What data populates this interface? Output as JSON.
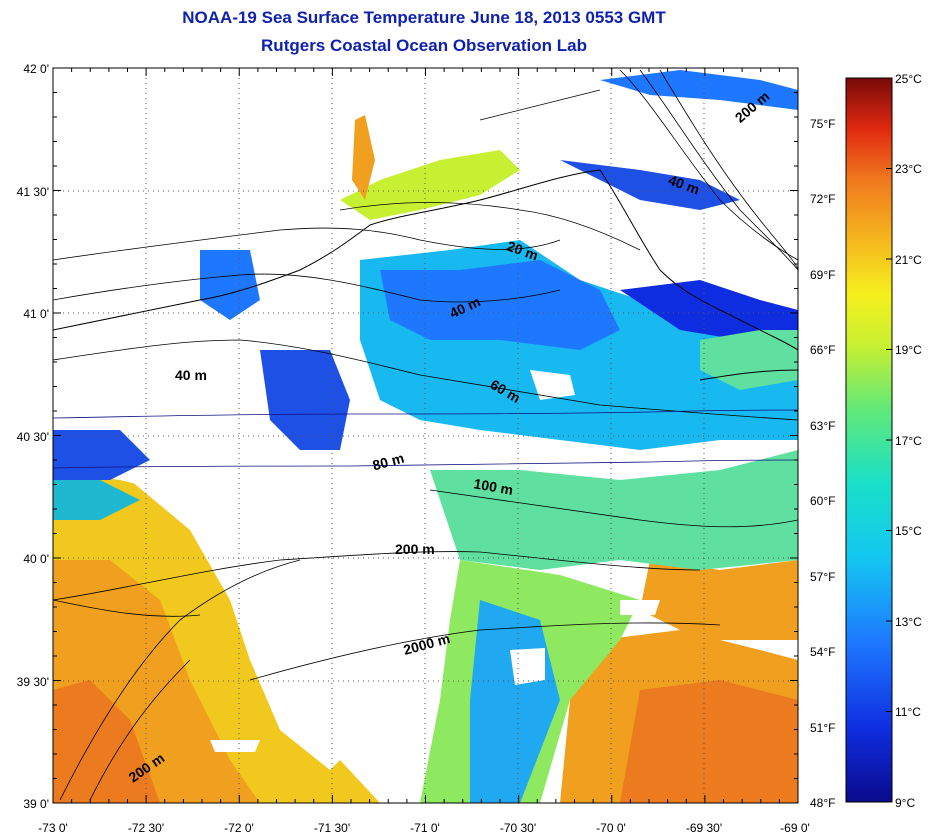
{
  "title": {
    "line1": "NOAA-19 Sea Surface Temperature June 18, 2013 0553 GMT",
    "line2": "Rutgers Coastal Ocean Observation Lab"
  },
  "map": {
    "lon_range": [
      -73,
      -69
    ],
    "lat_range": [
      39,
      42
    ],
    "lon_ticks": [
      "-73 0'",
      "-72 30'",
      "-72 0'",
      "-71 30'",
      "-71 0'",
      "-70 30'",
      "-70 0'",
      "-69 30'",
      "-69 0'"
    ],
    "lat_ticks": [
      "42 0'",
      "41 30'",
      "41 0'",
      "40 30'",
      "40 0'",
      "39 30'",
      "39 0'"
    ],
    "f_ticks": [
      "75°F",
      "72°F",
      "69°F",
      "66°F",
      "63°F",
      "60°F",
      "57°F",
      "54°F",
      "51°F",
      "48°F"
    ],
    "contour_labels": [
      "200 m",
      "40 m",
      "20 m",
      "40 m",
      "40 m",
      "60 m",
      "80 m",
      "100 m",
      "200 m",
      "2000 m",
      "200 m"
    ]
  },
  "colorbar": {
    "labels": [
      "25°C",
      "23°C",
      "21°C",
      "19°C",
      "17°C",
      "15°C",
      "13°C",
      "11°C",
      "9°C"
    ],
    "range_c": [
      9,
      25
    ]
  }
}
